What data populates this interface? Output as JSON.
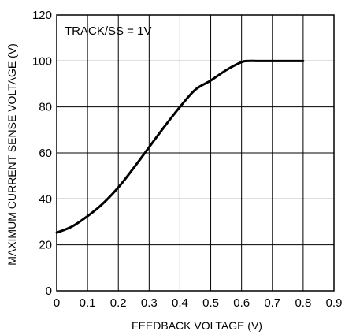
{
  "chart_data": {
    "type": "line",
    "title": "",
    "xlabel": "FEEDBACK VOLTAGE (V)",
    "ylabel": "MAXIMUM CURRENT SENSE VOLTAGE (V)",
    "xlim": [
      0,
      0.9
    ],
    "ylim": [
      0,
      120
    ],
    "x_ticks": [
      0,
      0.1,
      0.2,
      0.3,
      0.4,
      0.5,
      0.6,
      0.7,
      0.8,
      0.9
    ],
    "x_tick_labels": [
      "0",
      "0.1",
      "0.2",
      "0.3",
      "0.4",
      "0.5",
      "0.6",
      "0.7",
      "0.8",
      "0.9"
    ],
    "y_ticks": [
      0,
      20,
      40,
      60,
      80,
      100,
      120
    ],
    "y_tick_labels": [
      "0",
      "20",
      "40",
      "60",
      "80",
      "100",
      "120"
    ],
    "grid": true,
    "annotation": "TRACK/SS = 1V",
    "series": [
      {
        "x": [
          0,
          0.05,
          0.1,
          0.15,
          0.2,
          0.25,
          0.3,
          0.35,
          0.4,
          0.45,
          0.5,
          0.55,
          0.6,
          0.62,
          0.65,
          0.7,
          0.75,
          0.8
        ],
        "y": [
          25.3,
          28,
          32.5,
          38,
          45,
          53.5,
          62.5,
          71.5,
          80,
          87.5,
          91.5,
          96,
          99.5,
          100,
          100,
          100,
          100,
          100
        ],
        "color": "#000000"
      }
    ]
  }
}
